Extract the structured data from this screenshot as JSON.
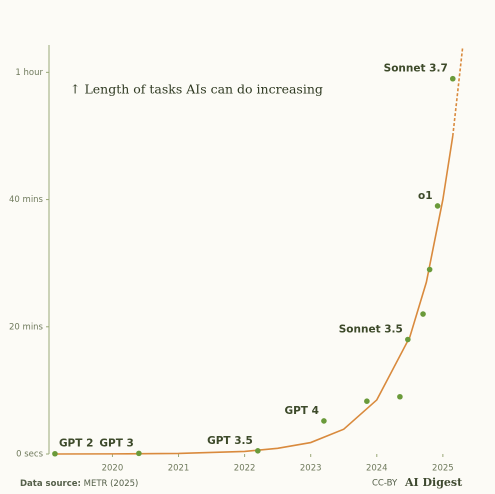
{
  "chart_data": {
    "type": "scatter",
    "annotation": "↑  Length of tasks AIs can do increasing",
    "source_label": "Data source:",
    "source": "METR (2025)",
    "license": "CC-BY",
    "brand": "AI Digest",
    "xlim": [
      2019.04,
      2025.35
    ],
    "ylim": [
      0,
      64.3
    ],
    "xticks": [
      2020,
      2021,
      2022,
      2023,
      2024,
      2025
    ],
    "yticks": [
      {
        "value": 0,
        "label": "0 secs"
      },
      {
        "value": 20,
        "label": "20 mins"
      },
      {
        "value": 40,
        "label": "40 mins"
      },
      {
        "value": 60,
        "label": "1 hour"
      }
    ],
    "series": [
      {
        "color": "#6a9a3a",
        "x": [
          2019.13,
          2020.4,
          2022.2,
          2023.2,
          2023.85,
          2024.35,
          2024.47,
          2024.7,
          2024.8,
          2024.92,
          2025.15
        ],
        "values": [
          0.04,
          0.1,
          0.5,
          5.2,
          8.3,
          9,
          18,
          22,
          29,
          39,
          59
        ],
        "labels": [
          "GPT 2",
          "GPT 3",
          "GPT 3.5",
          "GPT 4",
          null,
          null,
          "Sonnet 3.5",
          null,
          null,
          "o1",
          "Sonnet 3.7"
        ]
      },
      {
        "type": "line",
        "color": "#d98a3d",
        "x": [
          2019.1,
          2020,
          2021,
          2022,
          2022.5,
          2023,
          2023.5,
          2024,
          2024.5,
          2024.75,
          2025,
          2025.15
        ],
        "values": [
          0,
          0.02,
          0.09,
          0.4,
          0.9,
          1.8,
          3.9,
          8.5,
          18.4,
          27,
          40,
          50
        ]
      },
      {
        "type": "line",
        "dashed": true,
        "color": "#d98a3d",
        "x": [
          2025.15,
          2025.3
        ],
        "values": [
          50,
          64
        ]
      }
    ]
  }
}
